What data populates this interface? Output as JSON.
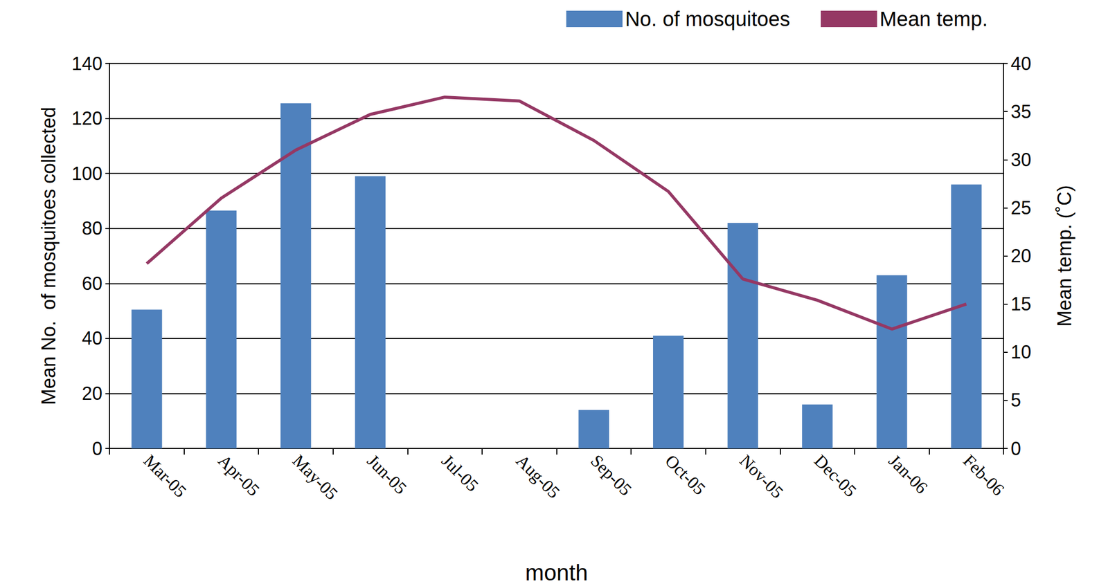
{
  "chart_data": {
    "type": "bar",
    "x_label": "month",
    "y_label": "Mean No.  of mosquitoes collected",
    "y2_label": "Mean temp. (˚C)",
    "categories": [
      "Mar-05",
      "Apr-05",
      "May-05",
      "Jun-05",
      "Jul-05",
      "Aug-05",
      "Sep-05",
      "Oct-05",
      "Nov-05",
      "Dec-05",
      "Jan-06",
      "Feb-06"
    ],
    "series": [
      {
        "name": "No. of mosquitoes",
        "type": "bar",
        "color": "#4f81bd",
        "values": [
          50.5,
          86.5,
          125.5,
          99,
          null,
          null,
          14,
          41,
          82,
          16,
          63,
          96
        ]
      },
      {
        "name": "Mean temp.",
        "type": "line",
        "axis": "y2",
        "color": "#953864",
        "marker": "none",
        "values": [
          19.2,
          26,
          31,
          34.7,
          36.5,
          36.1,
          32,
          26.7,
          17.6,
          15.4,
          12.4,
          15
        ]
      }
    ],
    "ylim": [
      0,
      140
    ],
    "yticks": [
      0,
      20,
      40,
      60,
      80,
      100,
      120,
      140
    ],
    "y2lim": [
      0,
      40
    ],
    "y2ticks": [
      0,
      5,
      10,
      15,
      20,
      25,
      30,
      35,
      40
    ],
    "grid": true,
    "legend": "top"
  }
}
